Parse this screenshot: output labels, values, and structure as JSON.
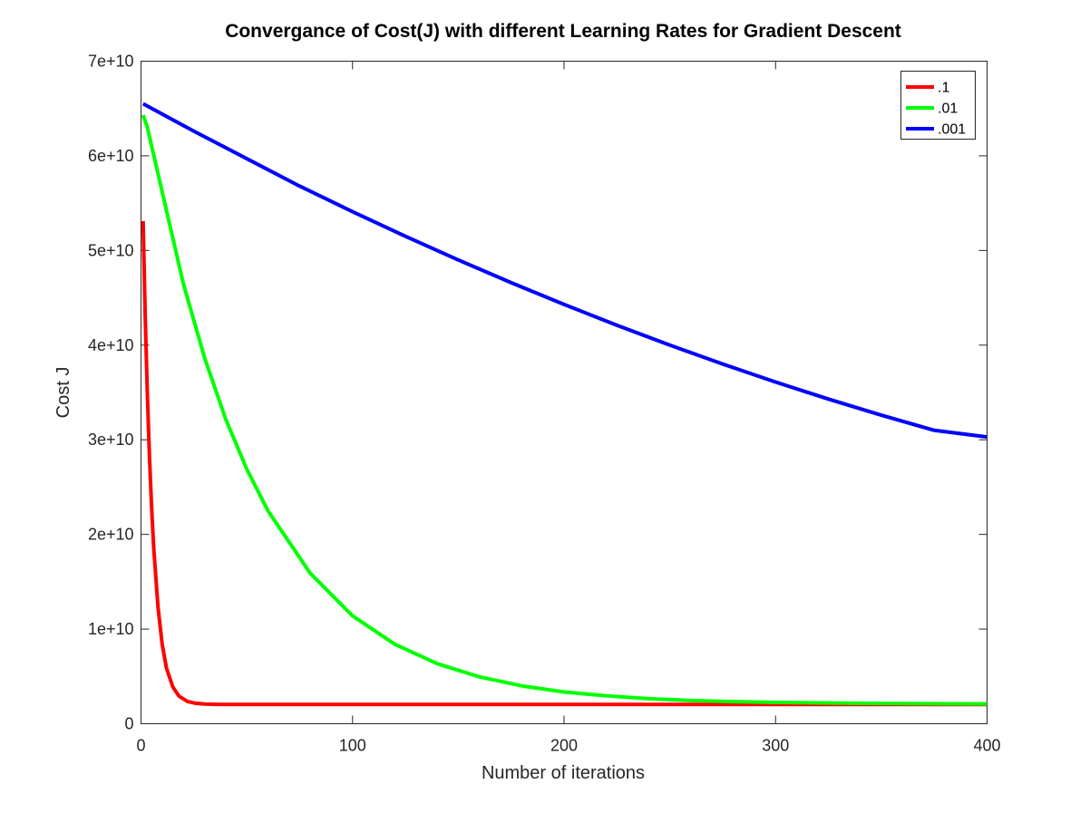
{
  "chart_data": {
    "type": "line",
    "title": "Convergance of Cost(J) with different Learning Rates for Gradient Descent",
    "xlabel": "Number of iterations",
    "ylabel": "Cost J",
    "xlim": [
      0,
      400
    ],
    "ylim": [
      0,
      70000000000
    ],
    "xticks": [
      0,
      100,
      200,
      300,
      400
    ],
    "xtick_labels": [
      "0",
      "100",
      "200",
      "300",
      "400"
    ],
    "yticks": [
      0,
      10000000000,
      20000000000,
      30000000000,
      40000000000,
      50000000000,
      60000000000,
      70000000000
    ],
    "ytick_labels": [
      "0",
      "1e+10",
      "2e+10",
      "3e+10",
      "4e+10",
      "5e+10",
      "6e+10",
      "7e+10"
    ],
    "grid": false,
    "legend_position": "top-right",
    "series": [
      {
        "name": ".1",
        "color": "#ff0000",
        "x": [
          1,
          2,
          3,
          4,
          5,
          6,
          8,
          10,
          12,
          15,
          18,
          22,
          26,
          30,
          35,
          40,
          50,
          60,
          80,
          100,
          150,
          200,
          250,
          300,
          350,
          400
        ],
        "y": [
          53100000000,
          43000000000,
          34800000000,
          28200000000,
          22900000000,
          18600000000,
          12400000000,
          8400000000,
          5900000000,
          3900000000,
          2900000000,
          2350000000,
          2150000000,
          2080000000,
          2050000000,
          2040000000,
          2040000000,
          2040000000,
          2040000000,
          2040000000,
          2040000000,
          2040000000,
          2040000000,
          2040000000,
          2040000000,
          2040000000
        ]
      },
      {
        "name": ".01",
        "color": "#00ff00",
        "x": [
          1,
          3,
          10,
          20,
          30,
          40,
          50,
          60,
          80,
          100,
          120,
          140,
          160,
          180,
          200,
          220,
          240,
          260,
          280,
          300,
          320,
          340,
          360,
          380,
          400
        ],
        "y": [
          64300000000,
          63000000000,
          56200000000,
          46500000000,
          38700000000,
          32200000000,
          26900000000,
          22500000000,
          15900000000,
          11400000000,
          8400000000,
          6350000000,
          4950000000,
          4000000000,
          3350000000,
          2950000000,
          2650000000,
          2450000000,
          2330000000,
          2250000000,
          2200000000,
          2160000000,
          2130000000,
          2110000000,
          2090000000
        ]
      },
      {
        "name": ".001",
        "color": "#0000ff",
        "x": [
          1,
          25,
          50,
          75,
          100,
          125,
          150,
          175,
          200,
          225,
          250,
          275,
          300,
          325,
          350,
          375,
          400
        ],
        "y": [
          65500000000,
          62600000000,
          59700000000,
          56800000000,
          54100000000,
          51500000000,
          49000000000,
          46600000000,
          44300000000,
          42100000000,
          40000000000,
          38000000000,
          36100000000,
          34300000000,
          32600000000,
          31000000000,
          30300000000
        ]
      }
    ]
  }
}
